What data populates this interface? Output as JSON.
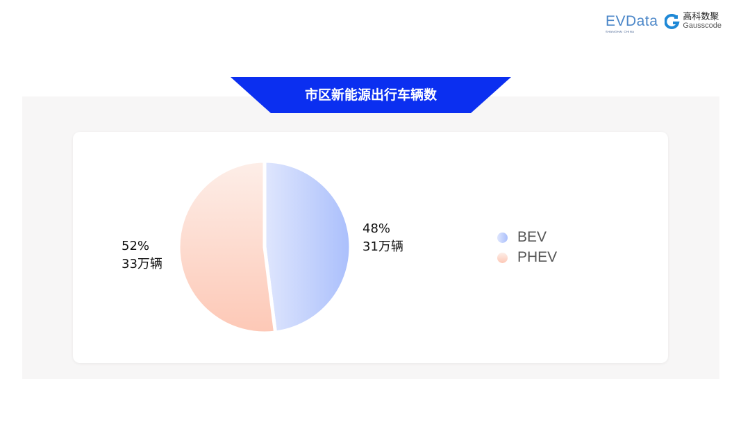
{
  "logos": {
    "evdata": "EVData",
    "evdata_sub": "SHANGHAI CHINA",
    "gausscode_cn": "高科数聚",
    "gausscode_en": "Gausscode"
  },
  "chart_data": {
    "type": "pie",
    "title": "市区新能源出行车辆数",
    "categories": [
      "BEV",
      "PHEV"
    ],
    "values": [
      31,
      33
    ],
    "percent": [
      48,
      52
    ],
    "data_labels": [
      {
        "pct": "48%",
        "value": "31万辆"
      },
      {
        "pct": "52%",
        "value": "33万辆"
      }
    ],
    "colors": {
      "BEV": [
        "#dfe6fd",
        "#aabffc"
      ],
      "PHEV": [
        "#fdeee8",
        "#fdc8b6"
      ]
    },
    "legend": "right",
    "banner_color": "#0b2ff0"
  }
}
